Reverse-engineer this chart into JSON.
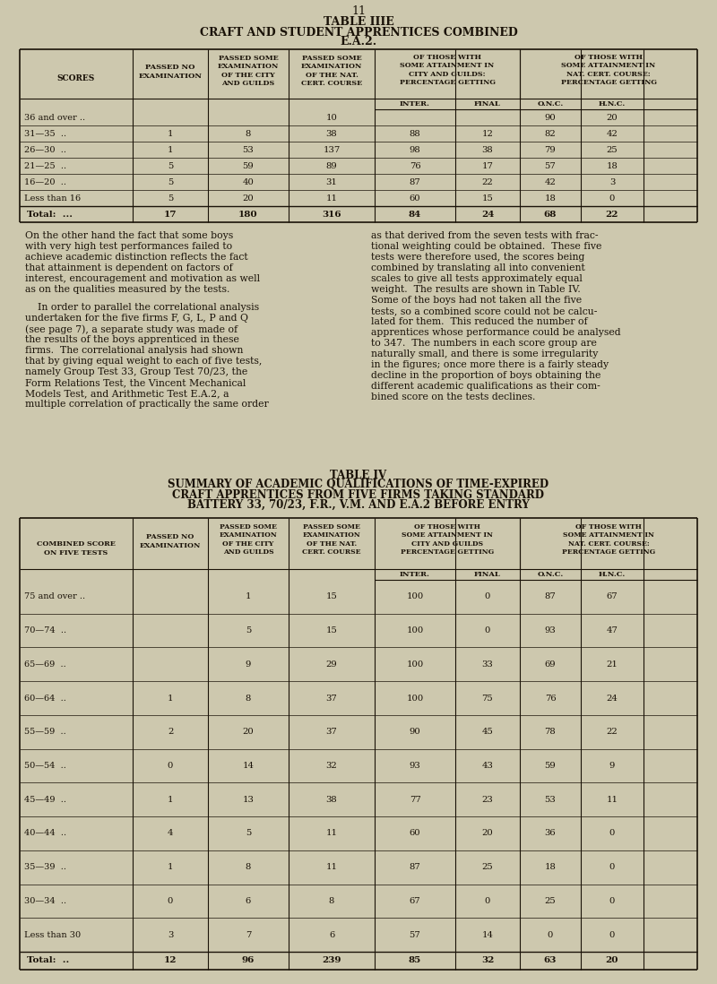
{
  "page_num": "11",
  "bg_color": "#cdc8ae",
  "text_color": "#1a1208",
  "table1_title": [
    "TABLE IIIE",
    "CRAFT AND STUDENT APPRENTICES COMBINED",
    "E.A.2."
  ],
  "table1_rows": [
    [
      "36 and over ..",
      "",
      "",
      "10",
      "",
      "",
      "90",
      "20"
    ],
    [
      "31—35  ..",
      "1",
      "8",
      "38",
      "88",
      "12",
      "82",
      "42"
    ],
    [
      "26—30  ..",
      "1",
      "53",
      "137",
      "98",
      "38",
      "79",
      "25"
    ],
    [
      "21—25  ..",
      "5",
      "59",
      "89",
      "76",
      "17",
      "57",
      "18"
    ],
    [
      "16—20  ..",
      "5",
      "40",
      "31",
      "87",
      "22",
      "42",
      "3"
    ],
    [
      "Less than 16",
      "5",
      "20",
      "11",
      "60",
      "15",
      "18",
      "0"
    ]
  ],
  "table1_total": [
    "Total:  ...",
    "17",
    "180",
    "316",
    "84",
    "24",
    "68",
    "22"
  ],
  "table2_title": [
    "TABLE IV",
    "SUMMARY OF ACADEMIC QUALIFICATIONS OF TIME-EXPIRED",
    "CRAFT APPRENTICES FROM FIVE FIRMS TAKING STANDARD",
    "BATTERY 33, 70/23, F.R., V.M. AND E.A.2 BEFORE ENTRY"
  ],
  "table2_rows": [
    [
      "75 and over ..",
      "",
      "1",
      "15",
      "100",
      "0",
      "87",
      "67"
    ],
    [
      "70—74  ..",
      "",
      "5",
      "15",
      "100",
      "0",
      "93",
      "47"
    ],
    [
      "65—69  ..",
      "",
      "9",
      "29",
      "100",
      "33",
      "69",
      "21"
    ],
    [
      "60—64  ..",
      "1",
      "8",
      "37",
      "100",
      "75",
      "76",
      "24"
    ],
    [
      "55—59  ..",
      "2",
      "20",
      "37",
      "90",
      "45",
      "78",
      "22"
    ],
    [
      "50—54  ..",
      "0",
      "14",
      "32",
      "93",
      "43",
      "59",
      "9"
    ],
    [
      "45—49  ..",
      "1",
      "13",
      "38",
      "77",
      "23",
      "53",
      "11"
    ],
    [
      "40—44  ..",
      "4",
      "5",
      "11",
      "60",
      "20",
      "36",
      "0"
    ],
    [
      "35—39  ..",
      "1",
      "8",
      "11",
      "87",
      "25",
      "18",
      "0"
    ],
    [
      "30—34  ..",
      "0",
      "6",
      "8",
      "67",
      "0",
      "25",
      "0"
    ],
    [
      "Less than 30",
      "3",
      "7",
      "6",
      "57",
      "14",
      "0",
      "0"
    ]
  ],
  "table2_total": [
    "Total:  ..",
    "12",
    "96",
    "239",
    "85",
    "32",
    "63",
    "20"
  ],
  "para_left1_lines": [
    "On the other hand the fact that some boys",
    "with very high test performances failed to",
    "achieve academic distinction reflects the fact",
    "that attainment is dependent on factors of",
    "interest, encouragement and motivation as well",
    "as on the qualities measured by the tests."
  ],
  "para_left2_lines": [
    "    In order to parallel the correlational analysis",
    "undertaken for the five firms F, G, L, P and Q",
    "(see page 7), a separate study was made of",
    "the results of the boys apprenticed in these",
    "firms.  The correlational analysis had shown",
    "that by giving equal weight to each of five tests,",
    "namely Group Test 33, Group Test 70/23, the",
    "Form Relations Test, the Vincent Mechanical",
    "Models Test, and Arithmetic Test E.A.2, a",
    "multiple correlation of practically the same order"
  ],
  "para_right_lines": [
    "as that derived from the seven tests with frac-",
    "tional weighting could be obtained.  These five",
    "tests were therefore used, the scores being",
    "combined by translating all into convenient",
    "scales to give all tests approximately equal",
    "weight.  The results are shown in Table IV.",
    "Some of the boys had not taken all the five",
    "tests, so a combined score could not be calcu-",
    "lated for them.  This reduced the number of",
    "apprentices whose performance could be analysed",
    "to 347.  The numbers in each score group are",
    "naturally small, and there is some irregularity",
    "in the figures; once more there is a fairly steady",
    "decline in the proportion of boys obtaining the",
    "different academic qualifications as their com-",
    "bined score on the tests declines."
  ],
  "col_x1": [
    22,
    148,
    232,
    322,
    418,
    508,
    580,
    648,
    718,
    778
  ],
  "col_x2": [
    22,
    148,
    232,
    322,
    418,
    508,
    580,
    648,
    718,
    778
  ]
}
